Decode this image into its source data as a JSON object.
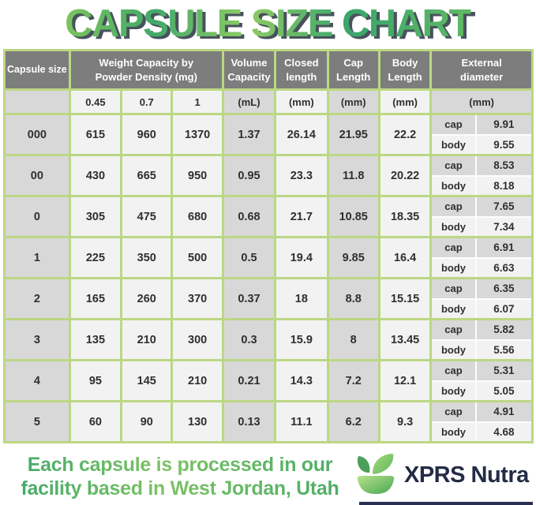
{
  "title": "CAPSULE SIZE CHART",
  "table": {
    "headers": {
      "capsule_size": "Capsule size",
      "weight_l1": "Weight Capacity by",
      "weight_l2": "Powder Density (mg)",
      "volume_l1": "Volume",
      "volume_l2": "Capacity",
      "closed_l1": "Closed",
      "closed_l2": "length",
      "cap_l1": "Cap",
      "cap_l2": "Length",
      "body_l1": "Body",
      "body_l2": "Length",
      "external_l1": "External",
      "external_l2": "diameter"
    },
    "subheaders": {
      "d045": "0.45",
      "d07": "0.7",
      "d1": "1",
      "ml": "(mL)",
      "mm": "(mm)"
    },
    "row_labels": {
      "cap": "cap",
      "body": "body"
    }
  },
  "chart_data": {
    "type": "table",
    "title": "CAPSULE SIZE CHART",
    "columns": [
      "Capsule size",
      "Weight capacity at powder density 0.45 (mg)",
      "Weight capacity at powder density 0.7 (mg)",
      "Weight capacity at powder density 1 (mg)",
      "Volume Capacity (mL)",
      "Closed length (mm)",
      "Cap Length (mm)",
      "Body Length (mm)",
      "External diameter cap (mm)",
      "External diameter body (mm)"
    ],
    "rows": [
      {
        "size": "000",
        "weight_045": "615",
        "weight_07": "960",
        "weight_1": "1370",
        "volume_ml": "1.37",
        "closed_mm": "26.14",
        "cap_mm": "21.95",
        "body_mm": "22.2",
        "ext_cap_mm": "9.91",
        "ext_body_mm": "9.55"
      },
      {
        "size": "00",
        "weight_045": "430",
        "weight_07": "665",
        "weight_1": "950",
        "volume_ml": "0.95",
        "closed_mm": "23.3",
        "cap_mm": "11.8",
        "body_mm": "20.22",
        "ext_cap_mm": "8.53",
        "ext_body_mm": "8.18"
      },
      {
        "size": "0",
        "weight_045": "305",
        "weight_07": "475",
        "weight_1": "680",
        "volume_ml": "0.68",
        "closed_mm": "21.7",
        "cap_mm": "10.85",
        "body_mm": "18.35",
        "ext_cap_mm": "7.65",
        "ext_body_mm": "7.34"
      },
      {
        "size": "1",
        "weight_045": "225",
        "weight_07": "350",
        "weight_1": "500",
        "volume_ml": "0.5",
        "closed_mm": "19.4",
        "cap_mm": "9.85",
        "body_mm": "16.4",
        "ext_cap_mm": "6.91",
        "ext_body_mm": "6.63"
      },
      {
        "size": "2",
        "weight_045": "165",
        "weight_07": "260",
        "weight_1": "370",
        "volume_ml": "0.37",
        "closed_mm": "18",
        "cap_mm": "8.8",
        "body_mm": "15.15",
        "ext_cap_mm": "6.35",
        "ext_body_mm": "6.07"
      },
      {
        "size": "3",
        "weight_045": "135",
        "weight_07": "210",
        "weight_1": "300",
        "volume_ml": "0.3",
        "closed_mm": "15.9",
        "cap_mm": "8",
        "body_mm": "13.45",
        "ext_cap_mm": "5.82",
        "ext_body_mm": "5.56"
      },
      {
        "size": "4",
        "weight_045": "95",
        "weight_07": "145",
        "weight_1": "210",
        "volume_ml": "0.21",
        "closed_mm": "14.3",
        "cap_mm": "7.2",
        "body_mm": "12.1",
        "ext_cap_mm": "5.31",
        "ext_body_mm": "5.05"
      },
      {
        "size": "5",
        "weight_045": "60",
        "weight_07": "90",
        "weight_1": "130",
        "volume_ml": "0.13",
        "closed_mm": "11.1",
        "cap_mm": "6.2",
        "body_mm": "9.3",
        "ext_cap_mm": "4.91",
        "ext_body_mm": "4.68"
      }
    ]
  },
  "footer": {
    "line1": "Each capsule is processed in our",
    "line2": "facility based in West Jordan, Utah",
    "brand": "XPRS Nutra"
  },
  "colors": {
    "border_green": "#bcd783",
    "header_gray": "#7d7d7d",
    "cell_gray": "#d8d8d8",
    "cell_light": "#f2f2f2",
    "title_green_light": "#8fcb65",
    "title_green_dark": "#3aa56b",
    "title_shadow": "#47525c",
    "brand_navy": "#242b45"
  }
}
